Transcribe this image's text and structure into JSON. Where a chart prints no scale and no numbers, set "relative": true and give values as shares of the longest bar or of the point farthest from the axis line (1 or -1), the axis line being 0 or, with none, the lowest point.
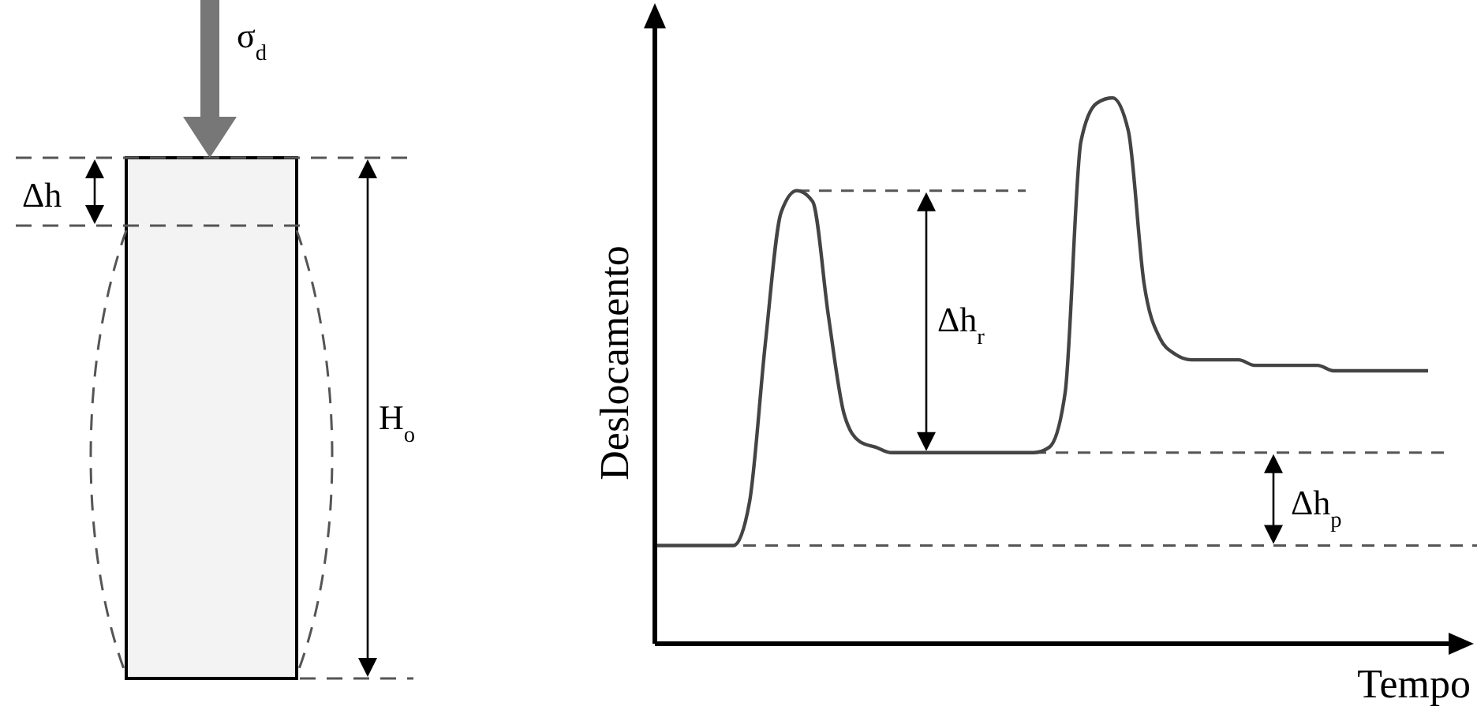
{
  "chart_data": [
    {
      "type": "other",
      "annotations": [
        "σ$_{d}$",
        "Δh",
        "H$_{o}$"
      ]
    },
    {
      "type": "line",
      "xlabel": "Tempo",
      "ylabel": "Deslocamento",
      "relative": true,
      "categories": [
        null,
        null,
        null,
        null,
        null,
        null,
        null,
        null,
        null,
        null,
        null,
        null,
        null,
        null,
        null,
        null,
        null,
        null,
        null,
        null,
        null,
        null,
        null,
        null,
        null,
        null,
        null,
        null,
        null,
        null,
        null,
        null,
        null,
        null,
        null,
        null,
        null,
        null,
        null,
        null,
        null,
        null,
        null,
        null,
        null,
        null,
        null,
        null,
        null,
        null
      ],
      "series": [
        {
          "color": "#444444",
          "values": [
            0.18,
            0.18,
            0.18,
            0.18,
            0.18,
            0.18,
            0.26,
            0.55,
            0.79,
            0.83,
            0.81,
            0.6,
            0.42,
            0.37,
            0.36,
            0.35,
            0.35,
            0.35,
            0.35,
            0.35,
            0.35,
            0.35,
            0.35,
            0.35,
            0.35,
            0.36,
            0.46,
            0.92,
            0.99,
            1.0,
            0.94,
            0.66,
            0.56,
            0.53,
            0.52,
            0.52,
            0.52,
            0.52,
            0.51,
            0.51,
            0.51,
            0.51,
            0.51,
            0.5,
            0.5,
            0.5,
            0.5,
            0.5,
            0.5,
            0.5
          ]
        }
      ],
      "ref_lines": [
        {
          "axis": "y",
          "value": 0.83,
          "color": "#555555",
          "line_style": "dashed"
        },
        {
          "axis": "y",
          "value": 0.35,
          "color": "#555555",
          "line_style": "dashed"
        },
        {
          "axis": "y",
          "value": 0.18,
          "color": "#555555",
          "line_style": "dashed"
        }
      ],
      "annotations": [
        "Δh$_{r}$",
        "Δh$_{p}$"
      ]
    }
  ]
}
